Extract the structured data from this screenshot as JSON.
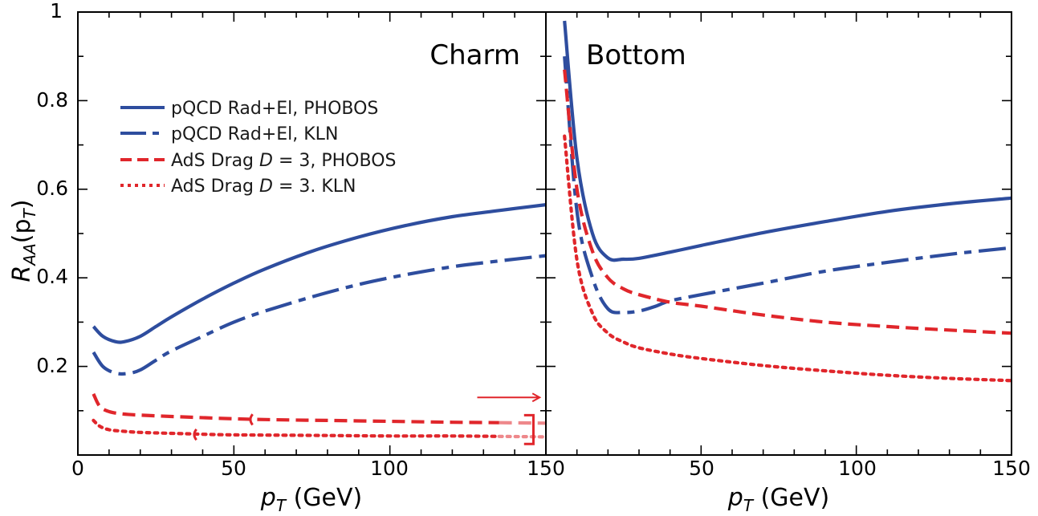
{
  "chart_data": {
    "type": "line",
    "ylabel_parts": {
      "main": "R",
      "sub": "AA",
      "arg_open": "(p",
      "arg_sub": "T",
      "arg_close": ")"
    },
    "xlabel_parts": {
      "main": "p",
      "sub": "T",
      "unit": " (GeV)"
    },
    "ylim": [
      0,
      1
    ],
    "xlim": [
      0,
      150
    ],
    "y_ticks": [
      0.2,
      0.4,
      0.6,
      0.8
    ],
    "y_tick_labels": [
      "0.2",
      "0.4",
      "0.6",
      "0.8"
    ],
    "y_top_label": "1",
    "x_tick_labels_left": [
      "0",
      "50",
      "100"
    ],
    "x_tick_labels_shared": "150",
    "x_tick_labels_right": [
      "50",
      "100",
      "150"
    ],
    "colors": {
      "blue": "#2e4d9e",
      "red": "#e0262b"
    },
    "legend": [
      {
        "name": "pQCD Rad+El, PHOBOS",
        "style": "solid",
        "color": "blue"
      },
      {
        "name": "pQCD Rad+El, KLN",
        "style": "longdash",
        "color": "blue"
      },
      {
        "name": "AdS Drag D = 3, PHOBOS",
        "prefix": "AdS Drag ",
        "italic": "D",
        "suffix": " = 3, PHOBOS",
        "style": "dash",
        "color": "red"
      },
      {
        "name": "AdS Drag D = 3. KLN",
        "prefix": "AdS Drag ",
        "italic": "D",
        "suffix": " = 3. KLN",
        "style": "dot",
        "color": "red"
      }
    ],
    "panels": [
      {
        "title": "Charm",
        "series": [
          {
            "name": "pQCD Rad+El, PHOBOS",
            "x": [
              5,
              8,
              12,
              15,
              20,
              25,
              30,
              40,
              50,
              60,
              75,
              90,
              105,
              120,
              135,
              150
            ],
            "y": [
              0.29,
              0.268,
              0.256,
              0.256,
              0.268,
              0.29,
              0.312,
              0.352,
              0.388,
              0.42,
              0.46,
              0.492,
              0.518,
              0.538,
              0.552,
              0.565
            ]
          },
          {
            "name": "pQCD Rad+El, KLN",
            "x": [
              5,
              8,
              12,
              16,
              20,
              25,
              30,
              40,
              50,
              60,
              75,
              90,
              105,
              120,
              135,
              150
            ],
            "y": [
              0.232,
              0.2,
              0.185,
              0.184,
              0.192,
              0.214,
              0.235,
              0.268,
              0.3,
              0.325,
              0.357,
              0.385,
              0.407,
              0.425,
              0.438,
              0.45
            ]
          },
          {
            "name": "AdS Drag D = 3, PHOBOS",
            "x": [
              5,
              7,
              10,
              14,
              20,
              30,
              45,
              60,
              80,
              100,
              120,
              135
            ],
            "y": [
              0.138,
              0.11,
              0.098,
              0.093,
              0.09,
              0.087,
              0.083,
              0.08,
              0.078,
              0.076,
              0.074,
              0.073
            ]
          },
          {
            "name": "AdS Drag D = 3. KLN",
            "x": [
              5,
              7,
              10,
              14,
              20,
              30,
              45,
              60,
              80,
              100,
              120,
              135
            ],
            "y": [
              0.078,
              0.065,
              0.057,
              0.054,
              0.051,
              0.049,
              0.046,
              0.045,
              0.044,
              0.043,
              0.043,
              0.042
            ]
          },
          {
            "name": "AdS Drag D = 3, PHOBOS (extrapolation)",
            "x": [
              135,
              150
            ],
            "y": [
              0.073,
              0.072
            ]
          },
          {
            "name": "AdS Drag D = 3. KLN (extrapolation)",
            "x": [
              135,
              150
            ],
            "y": [
              0.042,
              0.041
            ]
          }
        ]
      },
      {
        "title": "Bottom",
        "series": [
          {
            "name": "pQCD Rad+El, PHOBOS",
            "x": [
              6,
              10,
              15,
              20,
              25,
              30,
              40,
              50,
              70,
              90,
              110,
              130,
              150
            ],
            "y": [
              0.98,
              0.67,
              0.5,
              0.445,
              0.442,
              0.444,
              0.458,
              0.473,
              0.502,
              0.527,
              0.55,
              0.567,
              0.58
            ]
          },
          {
            "name": "pQCD Rad+El, KLN",
            "x": [
              6,
              10,
              15,
              20,
              25,
              30,
              35,
              40,
              50,
              70,
              90,
              110,
              130,
              150
            ],
            "y": [
              0.9,
              0.55,
              0.4,
              0.33,
              0.322,
              0.325,
              0.335,
              0.348,
              0.362,
              0.388,
              0.415,
              0.435,
              0.453,
              0.468
            ]
          },
          {
            "name": "AdS Drag D = 3, PHOBOS",
            "x": [
              6,
              10,
              15,
              20,
              25,
              30,
              40,
              50,
              70,
              90,
              110,
              130,
              150
            ],
            "y": [
              0.87,
              0.6,
              0.46,
              0.4,
              0.375,
              0.362,
              0.345,
              0.336,
              0.316,
              0.3,
              0.29,
              0.282,
              0.275
            ]
          },
          {
            "name": "AdS Drag D = 3. KLN",
            "x": [
              6,
              10,
              15,
              20,
              25,
              30,
              40,
              50,
              70,
              90,
              110,
              130,
              150
            ],
            "y": [
              0.72,
              0.44,
              0.32,
              0.275,
              0.255,
              0.242,
              0.228,
              0.218,
              0.202,
              0.19,
              0.18,
              0.173,
              0.168
            ]
          }
        ]
      }
    ]
  }
}
